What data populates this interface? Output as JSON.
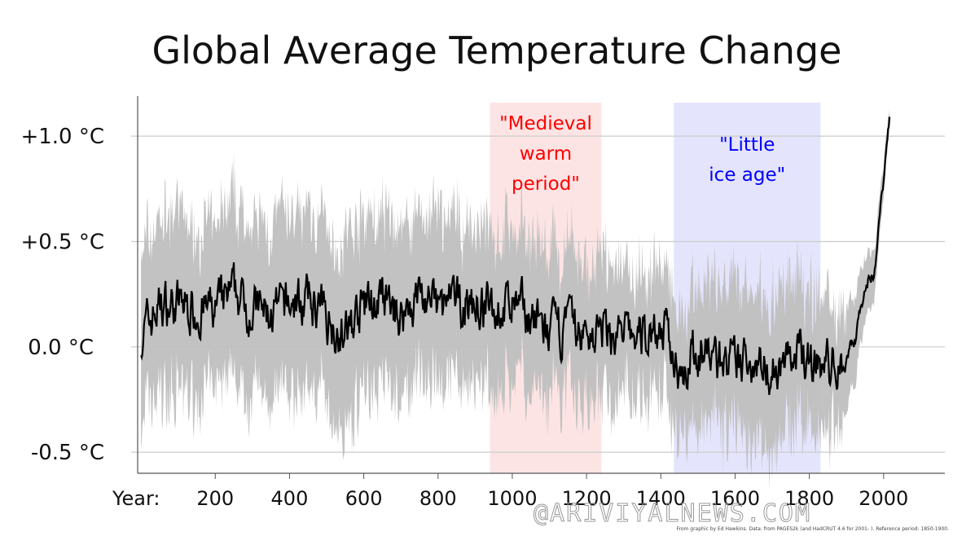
{
  "chart_data": {
    "type": "area",
    "title": "Global Average Temperature Change",
    "xlabel": "Year:",
    "ylabel": "",
    "xlim": [
      -9,
      2165
    ],
    "ylim": [
      -0.6,
      1.19
    ],
    "grid": true,
    "x_ticks": [
      200,
      400,
      600,
      800,
      1000,
      1200,
      1400,
      1600,
      1800,
      2000
    ],
    "y_ticks": [
      {
        "value": 1.0,
        "label": "+1.0 °C"
      },
      {
        "value": 0.5,
        "label": "+0.5 °C"
      },
      {
        "value": 0.0,
        "label": "0.0 °C"
      },
      {
        "value": -0.5,
        "label": "-0.5 °C"
      }
    ],
    "series": [
      {
        "x": [
          0,
          50,
          100,
          150,
          200,
          250,
          300,
          350,
          400,
          450,
          500,
          550,
          600,
          650,
          700,
          750,
          800,
          850,
          900,
          950,
          1000,
          1050,
          1100,
          1150,
          1200,
          1250,
          1300,
          1350,
          1400,
          1450,
          1500,
          1550,
          1600,
          1650,
          1700,
          1750,
          1800,
          1850,
          1900,
          1925,
          1950,
          1975,
          2000,
          2016
        ],
        "mean": [
          0.05,
          0.2,
          0.2,
          0.18,
          0.17,
          0.25,
          0.18,
          0.15,
          0.2,
          0.22,
          0.15,
          0.05,
          0.2,
          0.2,
          0.15,
          0.25,
          0.18,
          0.2,
          0.2,
          0.18,
          0.2,
          0.15,
          0.05,
          0.1,
          0.05,
          0.08,
          0.05,
          0.05,
          0.1,
          -0.1,
          -0.02,
          -0.05,
          -0.1,
          -0.05,
          -0.1,
          -0.05,
          -0.05,
          -0.1,
          -0.05,
          0.05,
          0.3,
          0.35,
          0.8,
          1.1
        ],
        "uncertainty": [
          0.4,
          0.42,
          0.42,
          0.4,
          0.4,
          0.42,
          0.4,
          0.4,
          0.42,
          0.42,
          0.42,
          0.45,
          0.42,
          0.4,
          0.4,
          0.4,
          0.4,
          0.38,
          0.38,
          0.38,
          0.36,
          0.36,
          0.35,
          0.35,
          0.33,
          0.32,
          0.3,
          0.3,
          0.3,
          0.32,
          0.32,
          0.33,
          0.35,
          0.35,
          0.35,
          0.35,
          0.33,
          0.32,
          0.25,
          0.2,
          0.15,
          0.12,
          0.08,
          0.05
        ],
        "mean_color": "#000000",
        "band_color": "#bfbfbf"
      }
    ],
    "annotations": [
      {
        "label": "\"Medieval warm period\"",
        "lines": [
          "\"Medieval",
          "warm",
          "period\""
        ],
        "x_range": [
          940,
          1240
        ],
        "color": "#ff0000",
        "band_color": "#fde4e4"
      },
      {
        "label": "\"Little ice age\"",
        "lines": [
          "\"Little",
          "ice age\""
        ],
        "x_range": [
          1435,
          1830
        ],
        "color": "#0000ff",
        "band_color": "#e4e4fc"
      }
    ]
  },
  "credit": "From graphic by Ed Hawkins.   Data: from PAGES2k (and HadCRUT 4.6 for 2001- ).   Reference period: 1850-1900.",
  "watermark": "@ARIVIYALNEWS.COM"
}
